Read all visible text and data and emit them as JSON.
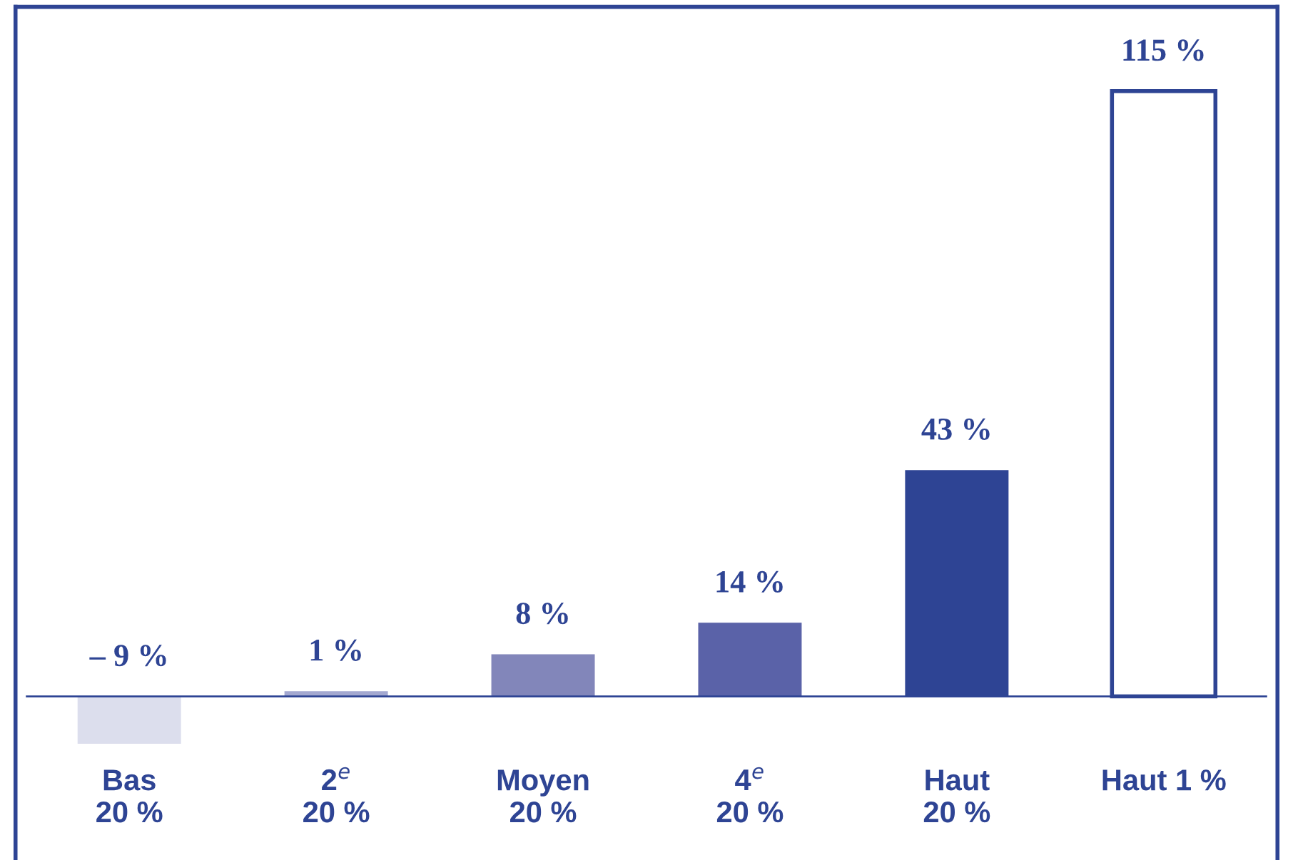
{
  "chart_data": {
    "type": "bar",
    "categories": [
      "Bas\n20 %",
      "2$^{e}$\n20 %",
      "Moyen\n20 %",
      "4$^{e}$\n20 %",
      "Haut\n20 %",
      "Haut 1 %"
    ],
    "values": [
      -9,
      1,
      8,
      14,
      43,
      115
    ],
    "value_labels": [
      "– 9 %",
      "1 %",
      "8 %",
      "14 %",
      "43 %",
      "115 %"
    ],
    "color": "#2e4494",
    "colors": [
      "#dcdeed",
      "#a3a8d0",
      "#8286ba",
      "#5a62a8",
      "#2e4494",
      "#ffffff"
    ],
    "grid": false,
    "legend": false
  }
}
